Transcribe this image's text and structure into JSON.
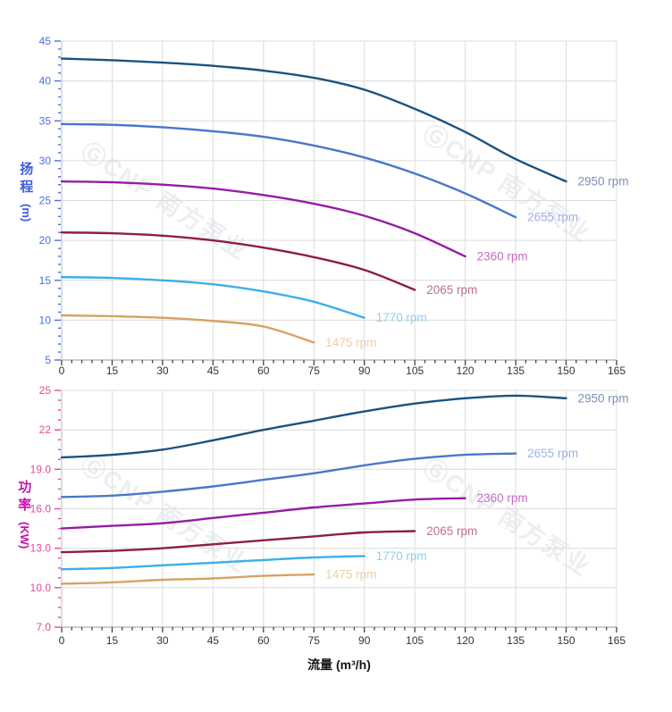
{
  "watermark_text": "ⒼCNP 南方泵业",
  "x_axis_title": "流量 (m³/h)",
  "head_axis": {
    "title": "扬程",
    "unit": "(m)"
  },
  "power_axis": {
    "title": "功率",
    "unit": "(KW)"
  },
  "chart_data": [
    {
      "type": "line",
      "name": "head-curves",
      "ylabel": "扬程 (m)",
      "xlabel": "流量 (m³/h)",
      "xlim": [
        0,
        165
      ],
      "ylim": [
        5,
        45
      ],
      "x_minor_step": 3,
      "y_minor_step": 1,
      "grid": true,
      "legend_position": "inline-end",
      "tick_color": "#4a6ee3",
      "title_color": "#3f5cd9",
      "x_tick_color": "#333333",
      "x_ticks": [
        [
          0,
          "0"
        ],
        [
          15,
          "15"
        ],
        [
          30,
          "30"
        ],
        [
          45,
          "45"
        ],
        [
          60,
          "60"
        ],
        [
          75,
          "75"
        ],
        [
          90,
          "90"
        ],
        [
          105,
          "105"
        ],
        [
          120,
          "120"
        ],
        [
          135,
          "135"
        ],
        [
          150,
          "150"
        ],
        [
          165,
          "165"
        ]
      ],
      "y_ticks": [
        [
          45,
          "45"
        ],
        [
          40,
          "40"
        ],
        [
          35,
          "35"
        ],
        [
          30,
          "30"
        ],
        [
          25,
          "25"
        ],
        [
          20,
          "20"
        ],
        [
          15,
          "15"
        ],
        [
          10,
          "10"
        ],
        [
          5,
          "5"
        ]
      ],
      "series": [
        {
          "name": "2950 rpm",
          "color": "#1a5380",
          "label_color": "#7a92b3",
          "points": [
            [
              0,
              42.8
            ],
            [
              15,
              42.6
            ],
            [
              30,
              42.3
            ],
            [
              45,
              41.9
            ],
            [
              60,
              41.3
            ],
            [
              75,
              40.4
            ],
            [
              90,
              38.9
            ],
            [
              105,
              36.5
            ],
            [
              120,
              33.6
            ],
            [
              135,
              30.2
            ],
            [
              150,
              27.4
            ]
          ]
        },
        {
          "name": "2655 rpm",
          "color": "#4b77c9",
          "label_color": "#9db3e3",
          "points": [
            [
              0,
              34.6
            ],
            [
              15,
              34.5
            ],
            [
              30,
              34.2
            ],
            [
              45,
              33.7
            ],
            [
              60,
              33.0
            ],
            [
              75,
              31.9
            ],
            [
              90,
              30.4
            ],
            [
              105,
              28.4
            ],
            [
              120,
              25.9
            ],
            [
              135,
              22.9
            ]
          ]
        },
        {
          "name": "2360 rpm",
          "color": "#961ca6",
          "label_color": "#c46cc6",
          "points": [
            [
              0,
              27.4
            ],
            [
              15,
              27.3
            ],
            [
              30,
              27.0
            ],
            [
              45,
              26.5
            ],
            [
              60,
              25.7
            ],
            [
              75,
              24.6
            ],
            [
              90,
              23.1
            ],
            [
              105,
              20.9
            ],
            [
              120,
              18.0
            ]
          ]
        },
        {
          "name": "2065 rpm",
          "color": "#8e1e41",
          "label_color": "#c16f8d",
          "points": [
            [
              0,
              21.0
            ],
            [
              15,
              20.9
            ],
            [
              30,
              20.6
            ],
            [
              45,
              20.0
            ],
            [
              60,
              19.1
            ],
            [
              75,
              17.9
            ],
            [
              90,
              16.3
            ],
            [
              105,
              13.8
            ]
          ]
        },
        {
          "name": "1770 rpm",
          "color": "#3cafe8",
          "label_color": "#90d0f0",
          "points": [
            [
              0,
              15.4
            ],
            [
              15,
              15.3
            ],
            [
              30,
              15.0
            ],
            [
              45,
              14.5
            ],
            [
              60,
              13.6
            ],
            [
              75,
              12.3
            ],
            [
              90,
              10.3
            ]
          ]
        },
        {
          "name": "1475 rpm",
          "color": "#d7a263",
          "label_color": "#eccfa6",
          "points": [
            [
              0,
              10.6
            ],
            [
              15,
              10.5
            ],
            [
              30,
              10.3
            ],
            [
              45,
              9.9
            ],
            [
              60,
              9.2
            ],
            [
              75,
              7.2
            ]
          ]
        }
      ]
    },
    {
      "type": "line",
      "name": "power-curves",
      "ylabel": "功率 (KW)",
      "xlabel": "流量 (m³/h)",
      "xlim": [
        0,
        165
      ],
      "ylim": [
        7,
        25
      ],
      "x_minor_step": 3,
      "y_minor_step": 0.75,
      "grid": true,
      "legend_position": "inline-end",
      "tick_color": "#e44b97",
      "title_color": "#c315ae",
      "x_tick_color": "#333333",
      "x_ticks": [
        [
          0,
          "0"
        ],
        [
          15,
          "15"
        ],
        [
          30,
          "30"
        ],
        [
          45,
          "45"
        ],
        [
          60,
          "60"
        ],
        [
          75,
          "75"
        ],
        [
          90,
          "90"
        ],
        [
          105,
          "105"
        ],
        [
          120,
          "120"
        ],
        [
          135,
          "135"
        ],
        [
          150,
          "150"
        ],
        [
          165,
          "165"
        ]
      ],
      "y_ticks": [
        [
          25,
          "25"
        ],
        [
          22,
          "22"
        ],
        [
          19,
          "19.0"
        ],
        [
          16,
          "16.0"
        ],
        [
          13,
          "13.0"
        ],
        [
          10,
          "10.0"
        ],
        [
          7,
          "7.0"
        ]
      ],
      "series": [
        {
          "name": "2950 rpm",
          "color": "#1a5380",
          "label_color": "#7a92b3",
          "points": [
            [
              0,
              19.9
            ],
            [
              15,
              20.1
            ],
            [
              30,
              20.5
            ],
            [
              45,
              21.2
            ],
            [
              60,
              22.0
            ],
            [
              75,
              22.7
            ],
            [
              90,
              23.4
            ],
            [
              105,
              24.0
            ],
            [
              120,
              24.4
            ],
            [
              135,
              24.6
            ],
            [
              150,
              24.4
            ]
          ]
        },
        {
          "name": "2655 rpm",
          "color": "#4b77c9",
          "label_color": "#9db3e3",
          "points": [
            [
              0,
              16.9
            ],
            [
              15,
              17.0
            ],
            [
              30,
              17.3
            ],
            [
              45,
              17.7
            ],
            [
              60,
              18.2
            ],
            [
              75,
              18.7
            ],
            [
              90,
              19.3
            ],
            [
              105,
              19.8
            ],
            [
              120,
              20.1
            ],
            [
              135,
              20.2
            ]
          ]
        },
        {
          "name": "2360 rpm",
          "color": "#961ca6",
          "label_color": "#c46cc6",
          "points": [
            [
              0,
              14.5
            ],
            [
              15,
              14.7
            ],
            [
              30,
              14.9
            ],
            [
              45,
              15.3
            ],
            [
              60,
              15.7
            ],
            [
              75,
              16.1
            ],
            [
              90,
              16.4
            ],
            [
              105,
              16.7
            ],
            [
              120,
              16.8
            ]
          ]
        },
        {
          "name": "2065 rpm",
          "color": "#8e1e41",
          "label_color": "#c16f8d",
          "points": [
            [
              0,
              12.7
            ],
            [
              15,
              12.8
            ],
            [
              30,
              13.0
            ],
            [
              45,
              13.3
            ],
            [
              60,
              13.6
            ],
            [
              75,
              13.9
            ],
            [
              90,
              14.2
            ],
            [
              105,
              14.3
            ]
          ]
        },
        {
          "name": "1770 rpm",
          "color": "#3cafe8",
          "label_color": "#90d0f0",
          "points": [
            [
              0,
              11.4
            ],
            [
              15,
              11.5
            ],
            [
              30,
              11.7
            ],
            [
              45,
              11.9
            ],
            [
              60,
              12.1
            ],
            [
              75,
              12.3
            ],
            [
              90,
              12.4
            ]
          ]
        },
        {
          "name": "1475 rpm",
          "color": "#d7a263",
          "label_color": "#eccfa6",
          "points": [
            [
              0,
              10.3
            ],
            [
              15,
              10.4
            ],
            [
              30,
              10.6
            ],
            [
              45,
              10.7
            ],
            [
              60,
              10.9
            ],
            [
              75,
              11.0
            ]
          ]
        }
      ]
    }
  ]
}
